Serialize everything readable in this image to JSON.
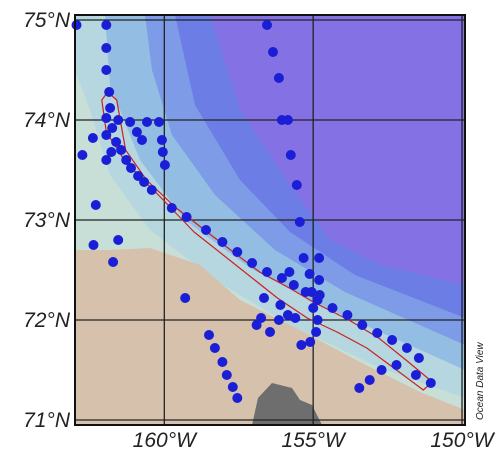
{
  "map": {
    "lon_range": [
      -163.0,
      -149.9
    ],
    "lat_range": [
      70.95,
      75.05
    ],
    "grid": true,
    "watermark": "Ocean Data View",
    "colors": {
      "deep_ocean": "#8472e4",
      "slope_dark": "#6c7ee6",
      "slope": "#7d9be6",
      "shelf": "#93bde2",
      "shelf_light": "#b6d7e0",
      "coastal": "#c7dfd6",
      "land": "#d6c1ad",
      "land_gray": "#6e6e6e",
      "station": "#1a1ed6",
      "outline": "#cc2020",
      "grid": "#222222"
    },
    "lat_ticks": [
      {
        "lat": 75,
        "label": "75°N"
      },
      {
        "lat": 74,
        "label": "74°N"
      },
      {
        "lat": 73,
        "label": "73°N"
      },
      {
        "lat": 72,
        "label": "72°N"
      },
      {
        "lat": 71,
        "label": "71°N"
      }
    ],
    "lon_ticks": [
      {
        "lon": -160,
        "label": "160°W"
      },
      {
        "lon": -155,
        "label": "155°W"
      },
      {
        "lon": -150,
        "label": "150°W"
      }
    ],
    "outline_region": [
      [
        -161.9,
        74.28
      ],
      [
        -161.6,
        74.2
      ],
      [
        -161.3,
        73.7
      ],
      [
        -160.6,
        73.4
      ],
      [
        -159.6,
        73.12
      ],
      [
        -158.3,
        72.82
      ],
      [
        -156.8,
        72.48
      ],
      [
        -155.8,
        72.32
      ],
      [
        -155.0,
        72.18
      ],
      [
        -153.8,
        72.0
      ],
      [
        -152.8,
        71.82
      ],
      [
        -151.8,
        71.58
      ],
      [
        -151.0,
        71.38
      ],
      [
        -151.3,
        71.3
      ],
      [
        -152.2,
        71.5
      ],
      [
        -153.2,
        71.72
      ],
      [
        -154.2,
        71.88
      ],
      [
        -155.2,
        72.02
      ],
      [
        -156.2,
        72.22
      ],
      [
        -157.6,
        72.55
      ],
      [
        -159.0,
        72.88
      ],
      [
        -160.2,
        73.25
      ],
      [
        -161.3,
        73.58
      ],
      [
        -161.95,
        73.88
      ],
      [
        -162.1,
        74.2
      ]
    ],
    "stations": [
      [
        -162.95,
        74.95
      ],
      [
        -161.95,
        74.95
      ],
      [
        -161.95,
        74.72
      ],
      [
        -161.95,
        74.5
      ],
      [
        -161.85,
        74.28
      ],
      [
        -161.82,
        74.12
      ],
      [
        -161.95,
        74.02
      ],
      [
        -161.75,
        73.92
      ],
      [
        -161.95,
        73.85
      ],
      [
        -161.62,
        73.78
      ],
      [
        -161.45,
        73.7
      ],
      [
        -161.78,
        73.68
      ],
      [
        -161.95,
        73.6
      ],
      [
        -161.28,
        73.6
      ],
      [
        -161.12,
        73.52
      ],
      [
        -160.88,
        73.44
      ],
      [
        -160.68,
        73.38
      ],
      [
        -161.55,
        74.0
      ],
      [
        -161.15,
        73.98
      ],
      [
        -160.58,
        73.98
      ],
      [
        -160.18,
        73.98
      ],
      [
        -160.92,
        73.88
      ],
      [
        -160.75,
        73.8
      ],
      [
        -160.08,
        73.8
      ],
      [
        -160.05,
        73.68
      ],
      [
        -159.98,
        73.55
      ],
      [
        -162.4,
        73.82
      ],
      [
        -162.75,
        73.65
      ],
      [
        -162.3,
        73.15
      ],
      [
        -162.38,
        72.75
      ],
      [
        -161.55,
        72.8
      ],
      [
        -161.72,
        72.58
      ],
      [
        -160.42,
        73.3
      ],
      [
        -159.75,
        73.12
      ],
      [
        -159.25,
        73.03
      ],
      [
        -158.6,
        72.9
      ],
      [
        -158.05,
        72.78
      ],
      [
        -157.55,
        72.68
      ],
      [
        -157.05,
        72.57
      ],
      [
        -156.55,
        72.48
      ],
      [
        -156.05,
        72.42
      ],
      [
        -155.65,
        72.35
      ],
      [
        -155.25,
        72.28
      ],
      [
        -154.85,
        72.2
      ],
      [
        -154.35,
        72.12
      ],
      [
        -153.85,
        72.05
      ],
      [
        -153.35,
        71.95
      ],
      [
        -152.85,
        71.87
      ],
      [
        -152.35,
        71.8
      ],
      [
        -151.85,
        71.72
      ],
      [
        -151.45,
        71.62
      ],
      [
        -151.05,
        71.37
      ],
      [
        -151.55,
        71.45
      ],
      [
        -152.2,
        71.55
      ],
      [
        -152.7,
        71.5
      ],
      [
        -153.1,
        71.4
      ],
      [
        -153.45,
        71.32
      ],
      [
        -156.55,
        74.95
      ],
      [
        -156.35,
        74.68
      ],
      [
        -156.15,
        74.42
      ],
      [
        -156.05,
        74.0
      ],
      [
        -155.85,
        74.0
      ],
      [
        -155.75,
        73.65
      ],
      [
        -155.55,
        73.35
      ],
      [
        -155.45,
        72.98
      ],
      [
        -155.32,
        72.62
      ],
      [
        -155.12,
        72.46
      ],
      [
        -155.05,
        72.28
      ],
      [
        -155.0,
        72.12
      ],
      [
        -154.8,
        72.62
      ],
      [
        -154.8,
        72.4
      ],
      [
        -154.78,
        72.25
      ],
      [
        -154.85,
        72.0
      ],
      [
        -154.9,
        71.88
      ],
      [
        -155.1,
        71.78
      ],
      [
        -155.4,
        71.75
      ],
      [
        -155.6,
        72.02
      ],
      [
        -155.85,
        72.05
      ],
      [
        -156.15,
        72.0
      ],
      [
        -156.45,
        71.88
      ],
      [
        -156.75,
        72.02
      ],
      [
        -155.8,
        72.48
      ],
      [
        -156.65,
        72.22
      ],
      [
        -156.1,
        72.15
      ],
      [
        -158.5,
        71.85
      ],
      [
        -158.3,
        71.72
      ],
      [
        -158.05,
        71.58
      ],
      [
        -157.9,
        71.45
      ],
      [
        -157.7,
        71.33
      ],
      [
        -157.55,
        71.22
      ],
      [
        -159.3,
        72.22
      ],
      [
        -156.9,
        71.95
      ]
    ]
  }
}
